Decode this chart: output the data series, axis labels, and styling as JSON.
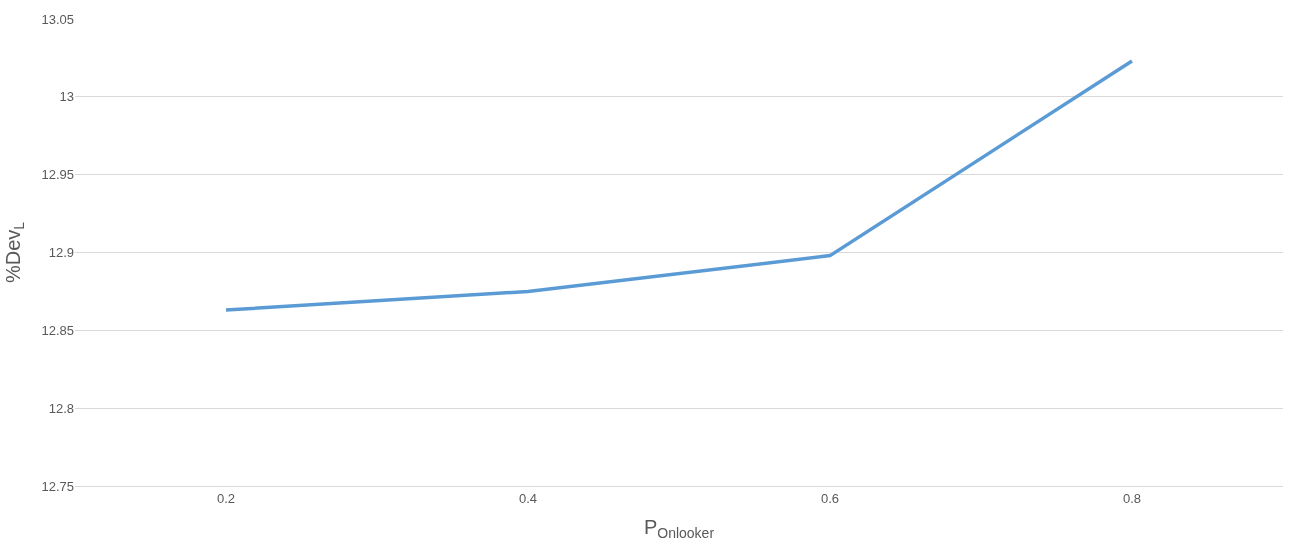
{
  "chart_data": {
    "type": "line",
    "xlabel": "P$_{Onlooker}$",
    "ylabel": "%Dev$_{L}$",
    "categories": [
      "0.2",
      "0.4",
      "0.6",
      "0.8"
    ],
    "series": [
      {
        "color": "#5b9bd5",
        "values": [
          12.863,
          12.875,
          12.898,
          13.023
        ]
      }
    ],
    "ylim": [
      12.75,
      13.05
    ],
    "yticks": [
      12.75,
      12.8,
      12.85,
      12.9,
      12.95,
      13,
      13.05
    ],
    "grid": "y",
    "marker": "none",
    "line_style": "solid"
  }
}
